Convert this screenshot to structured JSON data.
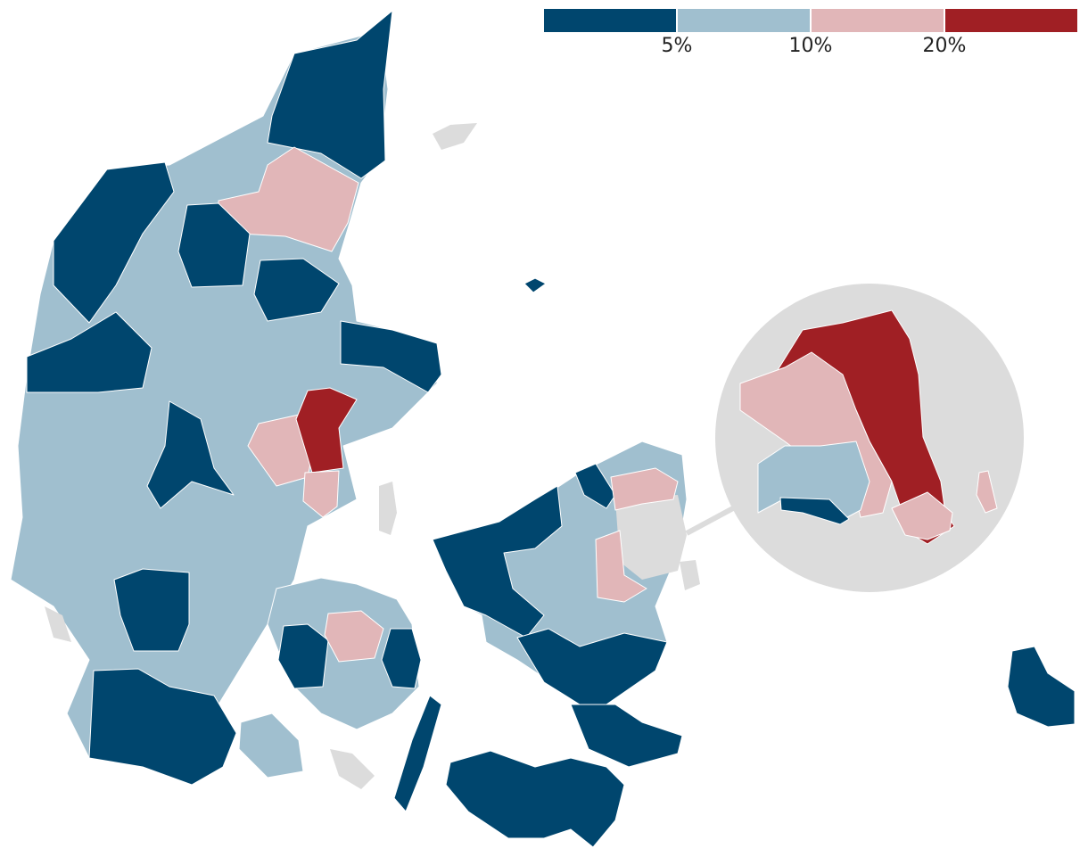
{
  "legend": {
    "colors": [
      "#00466e",
      "#a0bfcf",
      "#e1b6b8",
      "#a01f24"
    ],
    "labels": [
      "5%",
      "10%",
      "20%"
    ]
  }
}
